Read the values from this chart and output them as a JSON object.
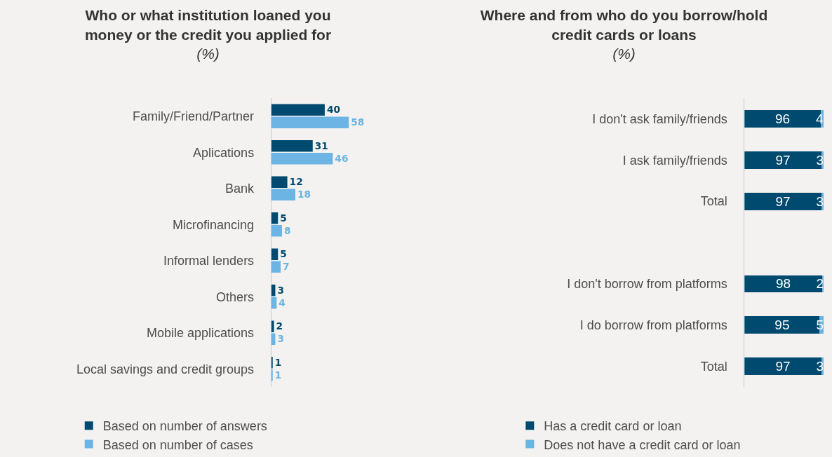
{
  "chart_data": [
    {
      "type": "bar",
      "orientation": "horizontal",
      "title": "Who or what institution loaned you money or the credit you applied for",
      "subtitle": "(%)",
      "categories": [
        "Family/Friend/Partner",
        "Aplications",
        "Bank",
        "Microfinancing",
        "Informal lenders",
        "Others",
        "Mobile applications",
        "Local savings and credit groups"
      ],
      "series": [
        {
          "name": "Based on number of answers",
          "color": "#004a70",
          "values": [
            40,
            31,
            12,
            5,
            5,
            3,
            2,
            1
          ]
        },
        {
          "name": "Based on number of cases",
          "color": "#6cb4e4",
          "values": [
            58,
            46,
            18,
            8,
            7,
            4,
            3,
            1
          ]
        }
      ],
      "data_labels": true,
      "grid": false,
      "legend": "bottom",
      "tick_labels": "y"
    },
    {
      "type": "bar",
      "orientation": "horizontal",
      "stacked": true,
      "title": "Where and from who do you borrow/hold credit cards or loans",
      "subtitle": "(%)",
      "categories": [
        "I don't ask family/friends",
        "I ask family/friends",
        "Total",
        null,
        "I don't borrow from platforms",
        "I do borrow from platforms",
        "Total"
      ],
      "series": [
        {
          "name": "Has a credit card or loan",
          "color": "#004a70",
          "values": [
            96,
            97,
            97,
            null,
            98,
            95,
            97
          ]
        },
        {
          "name": "Does not have a credit card or loan",
          "color": "#6cb4e4",
          "values": [
            4,
            3,
            3,
            null,
            2,
            5,
            3
          ]
        }
      ],
      "data_labels": true,
      "grid": false,
      "legend": "bottom",
      "tick_labels": "y"
    }
  ]
}
